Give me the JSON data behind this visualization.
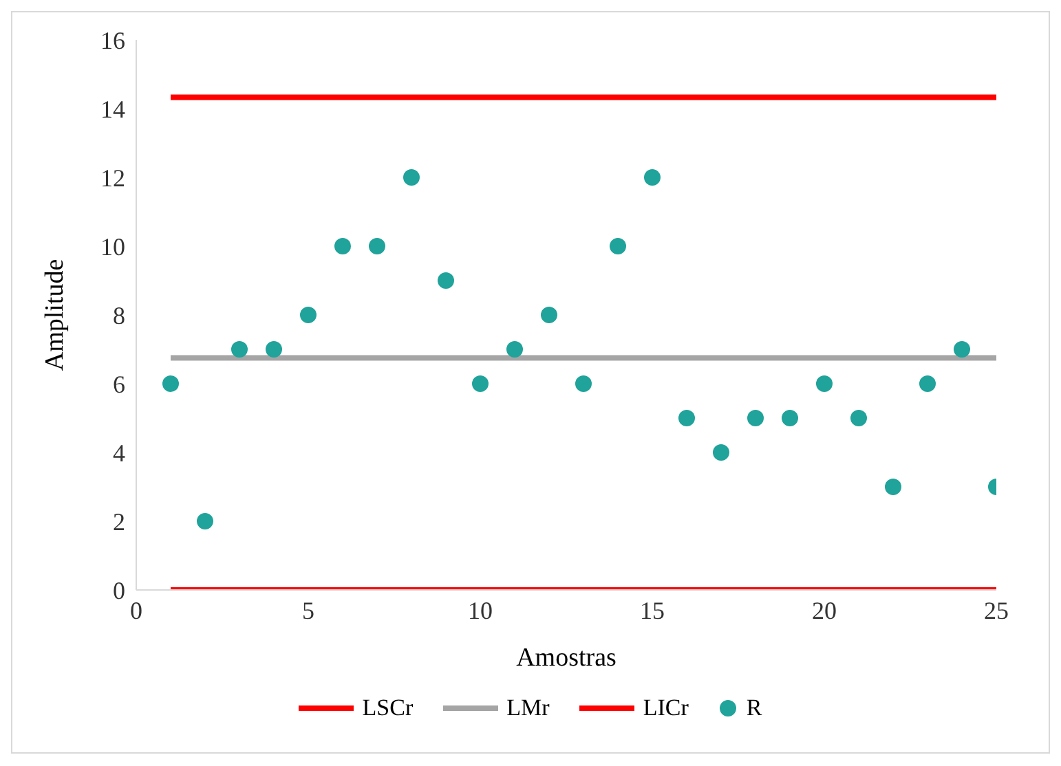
{
  "chart_data": {
    "type": "scatter",
    "xlabel": "Amostras",
    "ylabel": "Amplitude",
    "xlim": [
      0,
      25
    ],
    "xticks": [
      0,
      5,
      10,
      15,
      20,
      25
    ],
    "ylim": [
      0,
      16
    ],
    "yticks": [
      0,
      2,
      4,
      6,
      8,
      10,
      12,
      14,
      16
    ],
    "grid": false,
    "legend": "bottom",
    "series": [
      {
        "name": "LSCr",
        "type": "line",
        "color": "#ff0000",
        "marker": "none",
        "line_style": "solid",
        "x": [
          1,
          25
        ],
        "values": [
          14.33,
          14.33
        ]
      },
      {
        "name": "LMr",
        "type": "line",
        "color": "#a5a5a5",
        "marker": "none",
        "line_style": "solid",
        "x": [
          1,
          25
        ],
        "values": [
          6.75,
          6.75
        ]
      },
      {
        "name": "LICr",
        "type": "line",
        "color": "#ff0000",
        "marker": "none",
        "line_style": "solid",
        "x": [
          1,
          25
        ],
        "values": [
          0,
          0
        ]
      },
      {
        "name": "R",
        "color": "#1fa39a",
        "marker": "circle",
        "x": [
          1,
          2,
          3,
          4,
          5,
          6,
          7,
          8,
          9,
          10,
          11,
          12,
          13,
          14,
          15,
          16,
          17,
          18,
          19,
          20,
          21,
          22,
          23,
          24,
          25
        ],
        "values": [
          6,
          2,
          7,
          7,
          8,
          10,
          10,
          12,
          9,
          6,
          7,
          8,
          6,
          10,
          12,
          5,
          4,
          5,
          5,
          6,
          5,
          3,
          6,
          7,
          3
        ]
      }
    ]
  }
}
